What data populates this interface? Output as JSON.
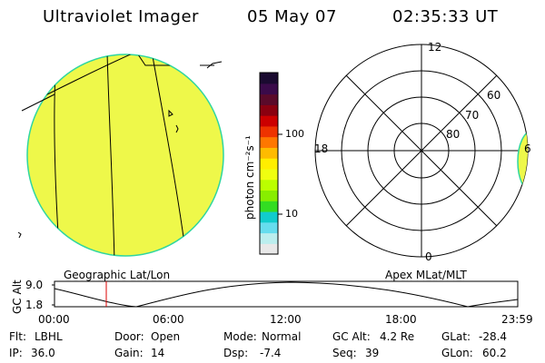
{
  "header": {
    "instrument": "Ultraviolet Imager",
    "date": "05 May 07",
    "time": "02:35:33 UT"
  },
  "colorbar": {
    "label": "photon cm⁻²s⁻¹",
    "ticks": [
      "100",
      "10"
    ],
    "colors": [
      "#1a0a30",
      "#3a0a4a",
      "#5a0a2a",
      "#8a0010",
      "#cc0000",
      "#ee3300",
      "#ff7700",
      "#ffbb00",
      "#ffee00",
      "#f0ff10",
      "#bbff00",
      "#88ee00",
      "#33dd22",
      "#11cccc",
      "#66ddee",
      "#bbeeee",
      "#e8e8e8"
    ]
  },
  "geo_panel": {
    "label": "Geographic Lat/Lon"
  },
  "polar_panel": {
    "label": "Apex MLat/MLT",
    "mlt_labels": [
      "12",
      "18",
      "0",
      "6"
    ],
    "lat_labels": [
      "60",
      "70",
      "80"
    ]
  },
  "altitude_plot": {
    "ylabel": "GC Alt",
    "yticks": [
      "9.0",
      "1.8"
    ],
    "xticks": [
      "00:00",
      "06:00",
      "12:00",
      "18:00",
      "23:59"
    ]
  },
  "info": {
    "flt_label": "Flt:",
    "flt_value": "LBHL",
    "door_label": "Door:",
    "door_value": "Open",
    "mode_label": "Mode:",
    "mode_value": "Normal",
    "gcalt_label": "GC Alt:",
    "gcalt_value": "4.2 Re",
    "glat_label": "GLat:",
    "glat_value": "-28.4",
    "ip_label": "IP:",
    "ip_value": "36.0",
    "gain_label": "Gain:",
    "gain_value": "14",
    "dsp_label": "Dsp:",
    "dsp_value": "-7.4",
    "seq_label": "Seq:",
    "seq_value": "39",
    "glon_label": "GLon:",
    "glon_value": "60.2"
  }
}
